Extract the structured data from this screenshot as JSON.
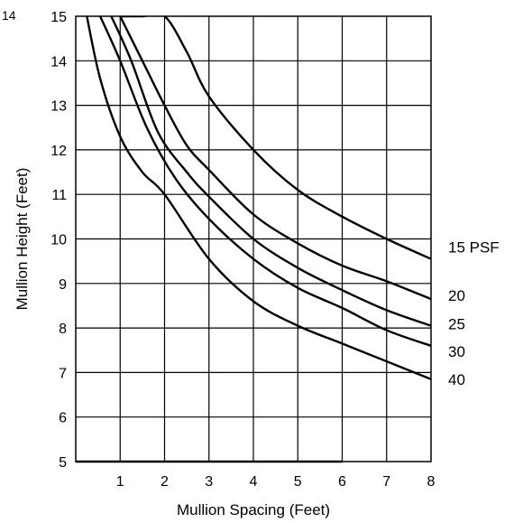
{
  "corner_text": "14",
  "chart_data": {
    "type": "line",
    "xlabel": "Mullion Spacing (Feet)",
    "ylabel": "Mullion Height (Feet)",
    "xlim": [
      0,
      8
    ],
    "ylim": [
      5,
      15
    ],
    "x_ticks": [
      "1",
      "2",
      "3",
      "4",
      "5",
      "6",
      "7",
      "8"
    ],
    "y_ticks": [
      "5",
      "6",
      "7",
      "8",
      "9",
      "10",
      "11",
      "12",
      "13",
      "14",
      "15"
    ],
    "grid": true,
    "series": [
      {
        "name": "15 PSF",
        "points": [
          [
            1.0,
            15.0
          ],
          [
            1.5,
            15.0
          ],
          [
            2.0,
            15.0
          ],
          [
            2.5,
            14.2
          ],
          [
            3.0,
            13.2
          ],
          [
            4.0,
            12.0
          ],
          [
            5.0,
            11.1
          ],
          [
            6.0,
            10.5
          ],
          [
            7.0,
            10.0
          ],
          [
            8.0,
            9.55
          ]
        ]
      },
      {
        "name": "20",
        "points": [
          [
            1.0,
            15.0
          ],
          [
            1.5,
            14.0
          ],
          [
            2.0,
            13.0
          ],
          [
            2.5,
            12.1
          ],
          [
            3.0,
            11.55
          ],
          [
            4.0,
            10.55
          ],
          [
            5.0,
            9.9
          ],
          [
            6.0,
            9.4
          ],
          [
            7.0,
            9.05
          ],
          [
            8.0,
            8.65
          ]
        ]
      },
      {
        "name": "25",
        "points": [
          [
            0.8,
            15.0
          ],
          [
            1.25,
            14.0
          ],
          [
            1.85,
            12.4
          ],
          [
            2.5,
            11.5
          ],
          [
            3.0,
            10.95
          ],
          [
            4.0,
            10.0
          ],
          [
            5.0,
            9.35
          ],
          [
            6.0,
            8.85
          ],
          [
            7.0,
            8.4
          ],
          [
            8.0,
            8.05
          ]
        ]
      },
      {
        "name": "30",
        "points": [
          [
            0.55,
            15.0
          ],
          [
            1.0,
            14.0
          ],
          [
            1.6,
            12.5
          ],
          [
            2.25,
            11.35
          ],
          [
            3.0,
            10.45
          ],
          [
            4.0,
            9.55
          ],
          [
            5.0,
            8.9
          ],
          [
            6.0,
            8.45
          ],
          [
            7.0,
            7.95
          ],
          [
            8.0,
            7.6
          ]
        ]
      },
      {
        "name": "40",
        "points": [
          [
            0.25,
            15.0
          ],
          [
            0.55,
            13.6
          ],
          [
            1.0,
            12.3
          ],
          [
            1.5,
            11.5
          ],
          [
            2.0,
            11.0
          ],
          [
            3.0,
            9.55
          ],
          [
            4.0,
            8.6
          ],
          [
            5.0,
            8.05
          ],
          [
            6.0,
            7.65
          ],
          [
            7.0,
            7.25
          ],
          [
            8.0,
            6.85
          ]
        ]
      }
    ]
  }
}
